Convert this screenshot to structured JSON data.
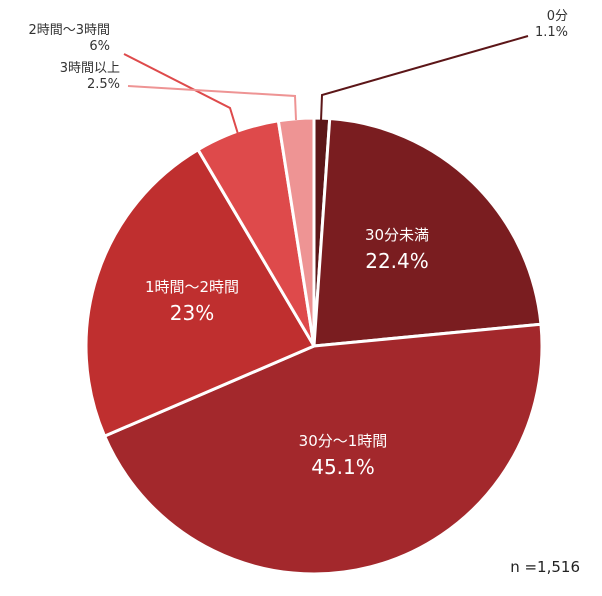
{
  "chart_data": {
    "type": "pie",
    "start": "top",
    "direction": "clockwise",
    "slices": [
      {
        "label": "0分",
        "value": 1.1,
        "value_label": "1.1%",
        "color": "#5c1618",
        "label_position": "outside"
      },
      {
        "label": "30分未満",
        "value": 22.4,
        "value_label": "22.4%",
        "color": "#7a1d20",
        "label_position": "inside"
      },
      {
        "label": "30分〜1時間",
        "value": 45.1,
        "value_label": "45.1%",
        "color": "#a3282c",
        "label_position": "inside"
      },
      {
        "label": "1時間〜2時間",
        "value": 23,
        "value_label": "23%",
        "color": "#bf2f2f",
        "label_position": "inside"
      },
      {
        "label": "2時間〜3時間",
        "value": 6,
        "value_label": "6%",
        "color": "#de4a4b",
        "label_position": "outside"
      },
      {
        "label": "3時間以上",
        "value": 2.5,
        "value_label": "2.5%",
        "color": "#ee9494",
        "label_position": "outside"
      }
    ],
    "note": "n =1,516"
  }
}
